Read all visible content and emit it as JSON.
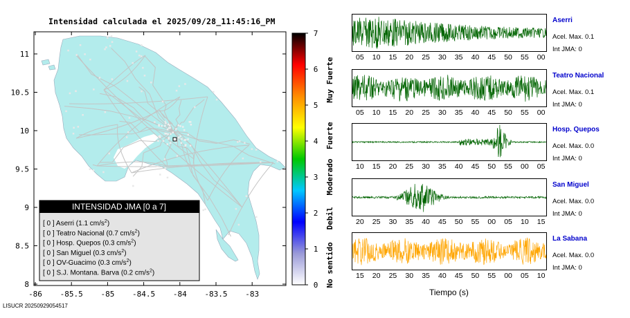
{
  "map": {
    "title": "Intensidad calculada el 2025/09/28_11:45:16_PM",
    "lat_ticks": [
      "11",
      "10.5",
      "10",
      "9.5",
      "9",
      "8.5",
      "8"
    ],
    "lon_ticks": [
      "-86",
      "-85.5",
      "-85",
      "-84.5",
      "-84",
      "-83.5",
      "-83"
    ],
    "land_color": "#b3ecec",
    "road_color": "#c4c4c4",
    "legend": {
      "title": "INTENSIDAD JMA [0 a 7]",
      "items": [
        {
          "code": "[ 0 ]",
          "label": "Aserri (1.1 cm/s",
          "sup": "2",
          "tail": ")"
        },
        {
          "code": "[ 0 ]",
          "label": "Teatro Nacional (0.7 cm/s",
          "sup": "2",
          "tail": ")"
        },
        {
          "code": "[ 0 ]",
          "label": "Hosp. Quepos (0.3 cm/s",
          "sup": "2",
          "tail": ")"
        },
        {
          "code": "[ 0 ]",
          "label": "San Miguel (0.3 cm/s",
          "sup": "2",
          "tail": ")"
        },
        {
          "code": "[ 0 ]",
          "label": "OV-Guacimo (0.3 cm/s",
          "sup": "2",
          "tail": ")"
        },
        {
          "code": "[ 0 ]",
          "label": "S.J. Montana. Barva (0.2 cm/s",
          "sup": "2",
          "tail": ")"
        }
      ]
    }
  },
  "colorbar": {
    "ticks": [
      "0",
      "1",
      "2",
      "3",
      "4",
      "5",
      "6",
      "7"
    ],
    "categories": [
      "No sentido",
      "Debil",
      "Moderado",
      "Fuerte",
      "Muy Fuerte"
    ],
    "colors": [
      "#ffffff",
      "#9a9ad8",
      "#0000ff",
      "#00c8ff",
      "#00c800",
      "#ffff00",
      "#ff8c00",
      "#ff0000",
      "#000000"
    ]
  },
  "waveforms": {
    "xlabel": "Tiempo (s)",
    "stations": [
      {
        "name": "Aserri",
        "accel": "Acel. Max. 0.1",
        "jma": "Int JMA: 0",
        "ticks": [
          "05",
          "10",
          "15",
          "20",
          "25",
          "30",
          "35",
          "40",
          "45",
          "50",
          "55",
          "00"
        ],
        "color": "#006400",
        "shape": "decay"
      },
      {
        "name": "Teatro Nacional",
        "accel": "Acel. Max. 0.1",
        "jma": "Int JMA: 0",
        "ticks": [
          "05",
          "10",
          "15",
          "20",
          "25",
          "30",
          "35",
          "40",
          "45",
          "50",
          "55",
          "00"
        ],
        "color": "#006400",
        "shape": "steady"
      },
      {
        "name": "Hosp. Quepos",
        "accel": "Acel. Max. 0.0",
        "jma": "Int JMA: 0",
        "ticks": [
          "10",
          "15",
          "20",
          "25",
          "30",
          "35",
          "40",
          "45",
          "50",
          "55",
          "00",
          "05"
        ],
        "color": "#006400",
        "shape": "late"
      },
      {
        "name": "San Miguel",
        "accel": "Acel. Max. 0.0",
        "jma": "Int JMA: 0",
        "ticks": [
          "20",
          "25",
          "30",
          "35",
          "40",
          "45",
          "50",
          "55",
          "00",
          "05",
          "10",
          "15"
        ],
        "color": "#006400",
        "shape": "mid"
      },
      {
        "name": "La Sabana",
        "accel": "Acel. Max. 0.0",
        "jma": "Int JMA: 0",
        "ticks": [
          "15",
          "20",
          "25",
          "30",
          "35",
          "40",
          "45",
          "50",
          "55",
          "00",
          "05",
          "10"
        ],
        "color": "#ffa500",
        "shape": "steady"
      }
    ]
  },
  "footer": "LISUCR 20250929054517"
}
